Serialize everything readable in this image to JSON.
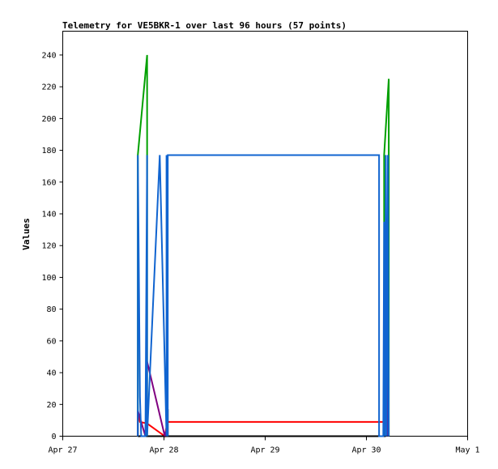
{
  "chart_data": {
    "type": "line",
    "title": "Telemetry for VE5BKR-1 over last 96 hours (57 points)",
    "xlabel": "",
    "ylabel": "Values",
    "x_ticks": [
      "Apr 27",
      "Apr 28",
      "Apr 29",
      "Apr 30",
      "May 1"
    ],
    "xlim": [
      0,
      96
    ],
    "ylim": [
      0,
      255
    ],
    "y_ticks": [
      0,
      20,
      40,
      60,
      80,
      100,
      120,
      140,
      160,
      180,
      200,
      220,
      240
    ],
    "grid": false,
    "legend": "none",
    "series": [
      {
        "color": "#00a000",
        "points": [
          [
            17.8,
            0
          ],
          [
            17.8,
            177
          ],
          [
            20.0,
            240
          ],
          [
            20.0,
            0
          ]
        ]
      },
      {
        "color": "#00a000",
        "points": [
          [
            76.2,
            0
          ],
          [
            76.2,
            177
          ],
          [
            77.3,
            225
          ],
          [
            77.3,
            0
          ]
        ]
      },
      {
        "color": "#ff0000",
        "points": [
          [
            17.8,
            15
          ],
          [
            18.3,
            9
          ],
          [
            20.0,
            8
          ],
          [
            24.2,
            0
          ],
          [
            24.8,
            9
          ],
          [
            76.6,
            9
          ]
        ]
      },
      {
        "color": "#000000",
        "points": [
          [
            17.8,
            0
          ],
          [
            76.6,
            0
          ]
        ]
      },
      {
        "color": "#000000",
        "points": [
          [
            24.9,
            0
          ],
          [
            24.9,
            17
          ]
        ]
      },
      {
        "color": "#800080",
        "points": [
          [
            17.8,
            0
          ],
          [
            17.8,
            16
          ],
          [
            19.6,
            0
          ],
          [
            20.0,
            47
          ],
          [
            24.2,
            0
          ],
          [
            24.4,
            3
          ]
        ]
      },
      {
        "color": "#800080",
        "points": [
          [
            77.1,
            0
          ],
          [
            77.1,
            64
          ]
        ]
      },
      {
        "color": "#1064d0",
        "points": [
          [
            17.8,
            0
          ],
          [
            17.8,
            177
          ],
          [
            18.3,
            25
          ],
          [
            18.6,
            0
          ],
          [
            19.6,
            0
          ],
          [
            20.0,
            177
          ],
          [
            20.0,
            0
          ],
          [
            23.0,
            177
          ],
          [
            24.6,
            0
          ],
          [
            24.6,
            177
          ],
          [
            24.9,
            0
          ],
          [
            24.9,
            177
          ],
          [
            75.0,
            177
          ],
          [
            75.0,
            0
          ],
          [
            76.0,
            0
          ],
          [
            76.2,
            135
          ],
          [
            76.4,
            0
          ],
          [
            76.6,
            177
          ],
          [
            76.8,
            0
          ],
          [
            77.1,
            177
          ],
          [
            77.3,
            0
          ]
        ]
      }
    ]
  }
}
